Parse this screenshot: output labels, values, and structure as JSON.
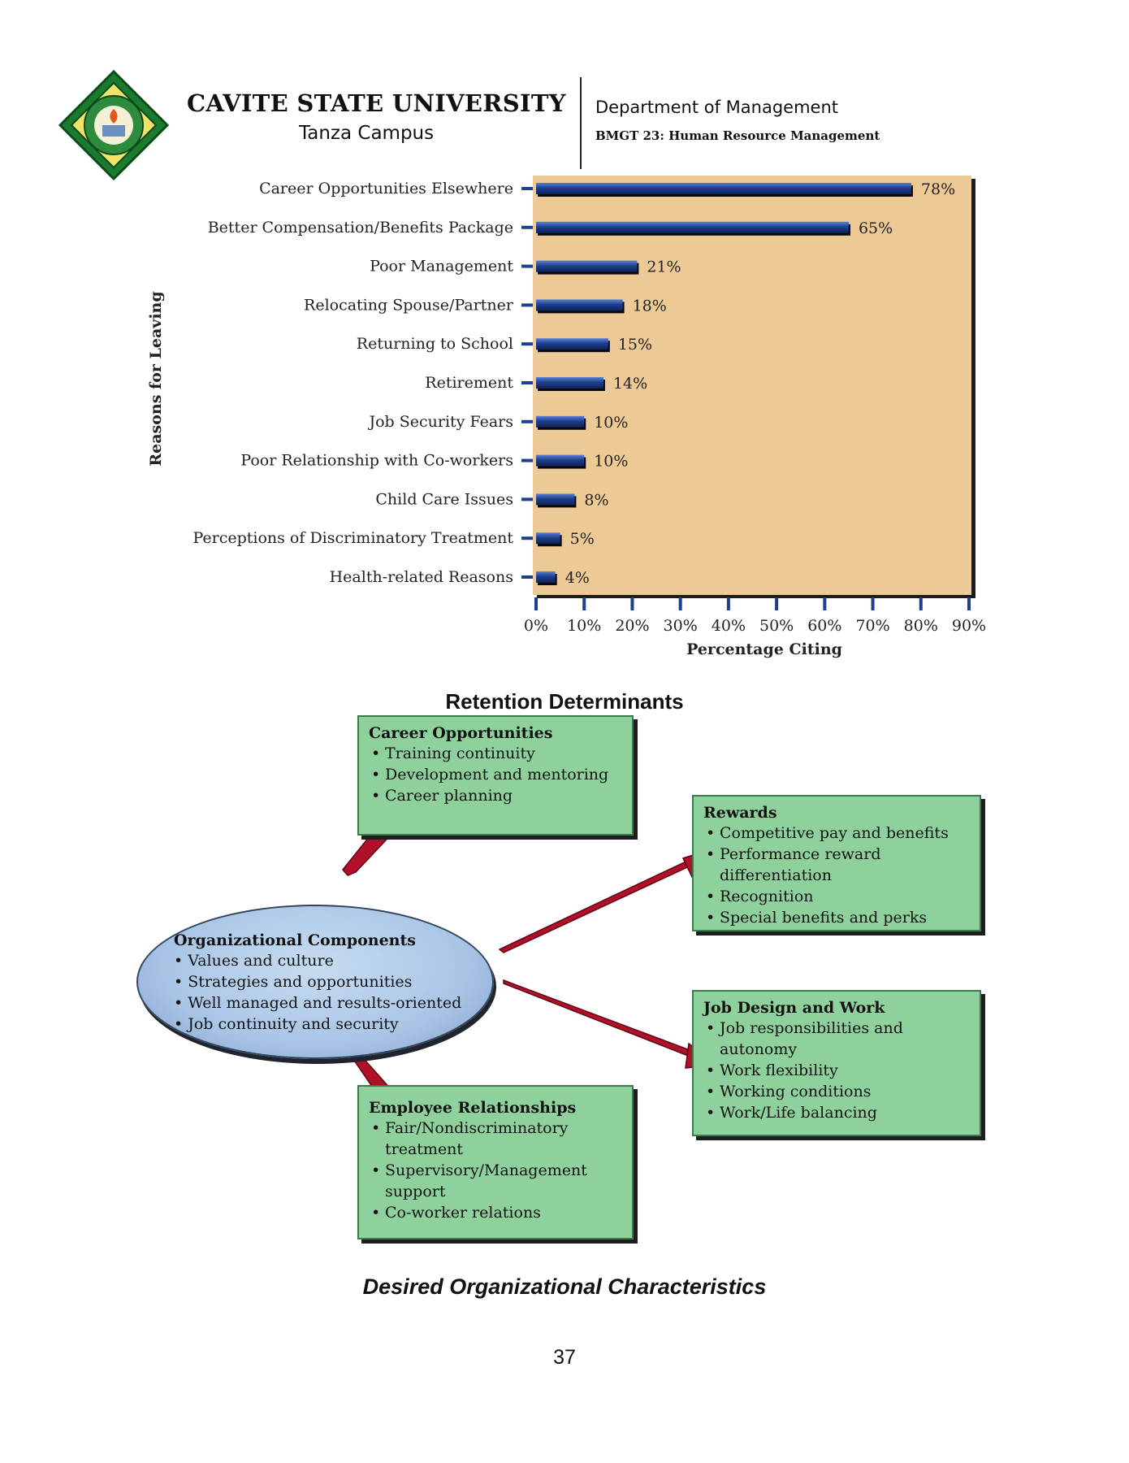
{
  "header": {
    "university": "CAVITE STATE UNIVERSITY",
    "campus": "Tanza Campus",
    "department": "Department of Management",
    "course": "BMGT 23: Human Resource Management"
  },
  "chart_data": {
    "type": "bar",
    "orientation": "horizontal",
    "categories": [
      "Career Opportunities Elsewhere",
      "Better Compensation/Benefits Package",
      "Poor Management",
      "Relocating Spouse/Partner",
      "Returning to School",
      "Retirement",
      "Job Security Fears",
      "Poor Relationship with Co-workers",
      "Child Care Issues",
      "Perceptions of Discriminatory Treatment",
      "Health-related Reasons"
    ],
    "values": [
      78,
      65,
      21,
      18,
      15,
      14,
      10,
      10,
      8,
      5,
      4
    ],
    "value_labels": [
      "78%",
      "65%",
      "21%",
      "18%",
      "15%",
      "14%",
      "10%",
      "10%",
      "8%",
      "5%",
      "4%"
    ],
    "xlabel": "Percentage Citing",
    "ylabel": "Reasons for Leaving",
    "xlim": [
      0,
      90
    ],
    "xticks": [
      "0%",
      "10%",
      "20%",
      "30%",
      "40%",
      "50%",
      "60%",
      "70%",
      "80%",
      "90%"
    ],
    "colors": {
      "plot_bg": "#ecc995",
      "bar": "#1e3f8c",
      "bar_highlight": "#3f66c0"
    },
    "grid": false
  },
  "diagram": {
    "title": "Retention Determinants",
    "center": {
      "title": "Organizational Components",
      "items": [
        "Values and culture",
        "Strategies and opportunities",
        "Well managed and results-oriented",
        "Job continuity and security"
      ]
    },
    "career": {
      "title": "Career Opportunities",
      "items": [
        "Training continuity",
        "Development and mentoring",
        "Career planning"
      ]
    },
    "rewards": {
      "title": "Rewards",
      "items": [
        "Competitive pay and benefits",
        "Performance reward differentiation",
        "Recognition",
        "Special benefits and perks"
      ]
    },
    "job_design": {
      "title": "Job Design and Work",
      "items": [
        "Job responsibilities and autonomy",
        "Work flexibility",
        "Working conditions",
        "Work/Life balancing"
      ]
    },
    "relationships": {
      "title": "Employee Relationships",
      "items": [
        "Fair/Nondiscriminatory treatment",
        "Supervisory/Management support",
        "Co-worker relations"
      ]
    },
    "colors": {
      "box": "#8fd19c",
      "oval": "#a9c5e6",
      "arrow": "#b0102a"
    }
  },
  "caption": "Desired Organizational Characteristics",
  "page_number": "37"
}
